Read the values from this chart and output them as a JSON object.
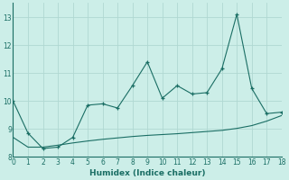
{
  "xlabel": "Humidex (Indice chaleur)",
  "bg_color": "#cceee8",
  "grid_color": "#b0d8d2",
  "line_color": "#1a6e64",
  "x_data": [
    0,
    1,
    2,
    3,
    4,
    5,
    6,
    7,
    8,
    9,
    10,
    11,
    12,
    13,
    14,
    15,
    16,
    17,
    18
  ],
  "y_main": [
    10.0,
    8.85,
    8.3,
    8.35,
    8.7,
    9.85,
    9.9,
    9.75,
    10.55,
    11.4,
    10.1,
    10.55,
    10.25,
    10.3,
    11.15,
    13.1,
    10.45,
    9.55,
    9.6
  ],
  "y_trend": [
    8.7,
    8.35,
    8.35,
    8.42,
    8.5,
    8.57,
    8.63,
    8.68,
    8.73,
    8.77,
    8.8,
    8.83,
    8.87,
    8.91,
    8.95,
    9.02,
    9.12,
    9.28,
    9.48
  ],
  "xlim": [
    0,
    18
  ],
  "ylim": [
    8.0,
    13.5
  ],
  "yticks": [
    8,
    9,
    10,
    11,
    12,
    13
  ],
  "xticks": [
    0,
    1,
    2,
    3,
    4,
    5,
    6,
    7,
    8,
    9,
    10,
    11,
    12,
    13,
    14,
    15,
    16,
    17,
    18
  ]
}
